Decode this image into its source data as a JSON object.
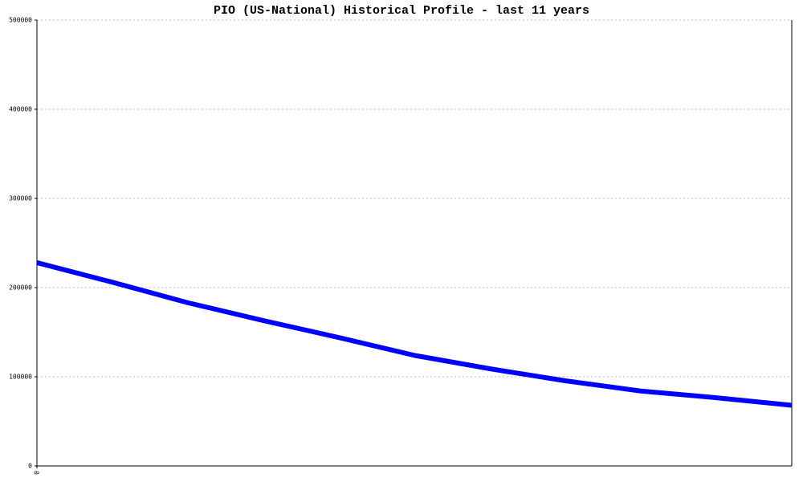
{
  "chart_data": {
    "type": "line",
    "title": "PIO (US-National) Historical Profile - last 11 years",
    "x": [
      0,
      1,
      2,
      3,
      4,
      5,
      6,
      7,
      8,
      9,
      10
    ],
    "series": [
      {
        "color": "#0000ff",
        "values": [
          228000,
          206000,
          183000,
          163000,
          144000,
          124000,
          109000,
          95500,
          84000,
          76500,
          68000
        ]
      }
    ],
    "xlim": [
      0,
      10
    ],
    "xticks": [
      0
    ],
    "ylim": [
      0,
      500000
    ],
    "yticks": [
      0,
      100000,
      200000,
      300000,
      400000,
      500000
    ],
    "grid": true
  }
}
